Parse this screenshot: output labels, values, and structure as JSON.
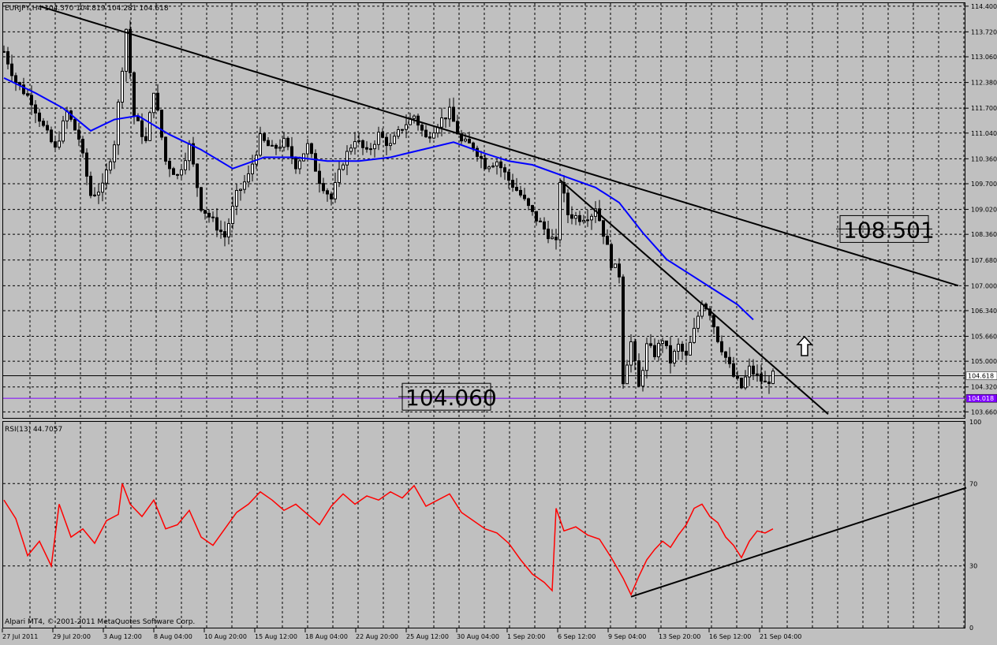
{
  "window": {
    "header_text": "EURJPY,H4  104.370 104.819 104.281 104.618",
    "copyright": "Alpari MT4, © 2001-2011 MetaQuotes Software Corp."
  },
  "colors": {
    "background": "#c0c0c0",
    "grid": "#000000",
    "candle": "#000000",
    "ma_line": "#0000ff",
    "rsi_line": "#ff0000",
    "level_line": "#8000ff",
    "trendline": "#000000"
  },
  "chart_data": [
    {
      "type": "candlestick",
      "symbol": "EURJPY",
      "timeframe": "H4",
      "ohlc_last": {
        "open": 104.37,
        "high": 104.819,
        "low": 104.281,
        "close": 104.618
      },
      "ylim": [
        103.5,
        114.48
      ],
      "y_ticks": [
        "114.400",
        "113.720",
        "113.060",
        "112.380",
        "111.700",
        "111.040",
        "110.360",
        "109.700",
        "109.020",
        "108.360",
        "107.680",
        "107.000",
        "106.340",
        "105.660",
        "105.000",
        "104.320",
        "103.660"
      ],
      "x_labels": [
        "27 Jul 2011",
        "29 Jul 20:00",
        "3 Aug 12:00",
        "8 Aug 04:00",
        "10 Aug 20:00",
        "15 Aug 12:00",
        "18 Aug 04:00",
        "22 Aug 20:00",
        "25 Aug 12:00",
        "30 Aug 04:00",
        "1 Sep 20:00",
        "6 Sep 12:00",
        "9 Sep 04:00",
        "13 Sep 20:00",
        "16 Sep 12:00",
        "21 Sep 04:00"
      ],
      "price_path": [
        [
          0,
          113.2
        ],
        [
          3,
          112.4
        ],
        [
          7,
          111.9
        ],
        [
          10,
          111.2
        ],
        [
          13,
          110.6
        ],
        [
          16,
          111.6
        ],
        [
          19,
          110.9
        ],
        [
          22,
          109.4
        ],
        [
          25,
          109.6
        ],
        [
          28,
          110.8
        ],
        [
          31,
          113.8
        ],
        [
          33,
          111.5
        ],
        [
          36,
          110.8
        ],
        [
          38,
          112.2
        ],
        [
          41,
          110.3
        ],
        [
          44,
          109.9
        ],
        [
          47,
          110.7
        ],
        [
          50,
          109.1
        ],
        [
          53,
          108.7
        ],
        [
          56,
          108.3
        ],
        [
          59,
          109.4
        ],
        [
          62,
          109.9
        ],
        [
          65,
          110.9
        ],
        [
          68,
          110.6
        ],
        [
          71,
          110.8
        ],
        [
          74,
          110.2
        ],
        [
          77,
          110.7
        ],
        [
          80,
          109.8
        ],
        [
          83,
          109.3
        ],
        [
          86,
          110.3
        ],
        [
          89,
          110.9
        ],
        [
          92,
          110.5
        ],
        [
          95,
          111.0
        ],
        [
          98,
          110.7
        ],
        [
          101,
          111.2
        ],
        [
          104,
          111.5
        ],
        [
          107,
          110.9
        ],
        [
          110,
          111.3
        ],
        [
          113,
          111.6
        ],
        [
          116,
          110.8
        ],
        [
          119,
          110.7
        ],
        [
          122,
          110.2
        ],
        [
          125,
          110.3
        ],
        [
          128,
          109.8
        ],
        [
          131,
          109.4
        ],
        [
          134,
          108.9
        ],
        [
          137,
          108.5
        ],
        [
          140,
          108.1
        ],
        [
          141,
          109.8
        ],
        [
          143,
          108.9
        ],
        [
          146,
          108.8
        ],
        [
          149,
          108.9
        ],
        [
          150,
          109.1
        ],
        [
          152,
          108.4
        ],
        [
          154,
          107.6
        ],
        [
          156,
          107.3
        ],
        [
          157,
          104.5
        ],
        [
          159,
          105.5
        ],
        [
          161,
          104.3
        ],
        [
          163,
          105.4
        ],
        [
          165,
          105.2
        ],
        [
          167,
          105.6
        ],
        [
          169,
          105.0
        ],
        [
          171,
          105.4
        ],
        [
          173,
          105.1
        ],
        [
          175,
          105.8
        ],
        [
          177,
          106.6
        ],
        [
          179,
          106.3
        ],
        [
          181,
          105.6
        ],
        [
          183,
          105.1
        ],
        [
          185,
          104.6
        ],
        [
          187,
          104.3
        ],
        [
          189,
          104.8
        ],
        [
          191,
          104.6
        ],
        [
          193,
          104.4
        ],
        [
          195,
          104.618
        ]
      ],
      "series": [
        {
          "kind": "moving-average",
          "values": [
            [
              0,
              112.5
            ],
            [
              8,
              112.1
            ],
            [
              15,
              111.7
            ],
            [
              22,
              111.1
            ],
            [
              28,
              111.4
            ],
            [
              34,
              111.5
            ],
            [
              42,
              111.0
            ],
            [
              50,
              110.6
            ],
            [
              58,
              110.1
            ],
            [
              66,
              110.4
            ],
            [
              74,
              110.4
            ],
            [
              82,
              110.3
            ],
            [
              90,
              110.3
            ],
            [
              98,
              110.4
            ],
            [
              106,
              110.6
            ],
            [
              114,
              110.8
            ],
            [
              122,
              110.5
            ],
            [
              128,
              110.3
            ],
            [
              134,
              110.2
            ],
            [
              142,
              109.9
            ],
            [
              150,
              109.6
            ],
            [
              156,
              109.2
            ],
            [
              162,
              108.4
            ],
            [
              168,
              107.7
            ],
            [
              174,
              107.3
            ],
            [
              180,
              106.9
            ],
            [
              186,
              106.5
            ],
            [
              190,
              106.1
            ]
          ]
        }
      ],
      "trendlines": [
        {
          "start": [
            9,
            114.4
          ],
          "end": [
            242,
            107.0
          ]
        },
        {
          "start": [
            141,
            109.8
          ],
          "end": [
            209,
            103.6
          ]
        }
      ],
      "horizontal_levels": [
        {
          "price": 104.618,
          "label": "104.618"
        },
        {
          "price": 104.018,
          "label": "104.018"
        }
      ],
      "annotations": [
        {
          "text": "108.501",
          "price": 108.501
        },
        {
          "text": "104.060",
          "price": 104.06
        }
      ],
      "arrow": {
        "shape": "up-arrow",
        "index": 203,
        "price": 105.4
      }
    },
    {
      "type": "line",
      "indicator": "RSI(13) 44.7057",
      "ylim": [
        0,
        100
      ],
      "y_ticks": [
        "100",
        "70",
        "30",
        "0"
      ],
      "values": [
        [
          0,
          62
        ],
        [
          3,
          53
        ],
        [
          6,
          35
        ],
        [
          9,
          42
        ],
        [
          12,
          30
        ],
        [
          14,
          60
        ],
        [
          17,
          44
        ],
        [
          20,
          48
        ],
        [
          23,
          41
        ],
        [
          26,
          52
        ],
        [
          29,
          55
        ],
        [
          30,
          70
        ],
        [
          32,
          60
        ],
        [
          35,
          54
        ],
        [
          38,
          62
        ],
        [
          41,
          48
        ],
        [
          44,
          50
        ],
        [
          47,
          57
        ],
        [
          50,
          44
        ],
        [
          53,
          40
        ],
        [
          56,
          48
        ],
        [
          59,
          56
        ],
        [
          62,
          60
        ],
        [
          65,
          66
        ],
        [
          68,
          62
        ],
        [
          71,
          57
        ],
        [
          74,
          60
        ],
        [
          77,
          55
        ],
        [
          80,
          50
        ],
        [
          83,
          59
        ],
        [
          86,
          65
        ],
        [
          89,
          60
        ],
        [
          92,
          64
        ],
        [
          95,
          62
        ],
        [
          98,
          66
        ],
        [
          101,
          63
        ],
        [
          104,
          69
        ],
        [
          107,
          59
        ],
        [
          110,
          62
        ],
        [
          113,
          65
        ],
        [
          116,
          56
        ],
        [
          119,
          52
        ],
        [
          122,
          48
        ],
        [
          125,
          46
        ],
        [
          128,
          41
        ],
        [
          131,
          33
        ],
        [
          134,
          26
        ],
        [
          137,
          22
        ],
        [
          139,
          18
        ],
        [
          140,
          58
        ],
        [
          142,
          47
        ],
        [
          145,
          49
        ],
        [
          148,
          45
        ],
        [
          151,
          43
        ],
        [
          154,
          34
        ],
        [
          157,
          24
        ],
        [
          159,
          16
        ],
        [
          161,
          25
        ],
        [
          163,
          33
        ],
        [
          165,
          38
        ],
        [
          167,
          42
        ],
        [
          169,
          39
        ],
        [
          171,
          45
        ],
        [
          173,
          50
        ],
        [
          175,
          58
        ],
        [
          177,
          60
        ],
        [
          179,
          54
        ],
        [
          181,
          51
        ],
        [
          183,
          44
        ],
        [
          185,
          40
        ],
        [
          187,
          34
        ],
        [
          189,
          42
        ],
        [
          191,
          47
        ],
        [
          193,
          46
        ],
        [
          195,
          48
        ]
      ],
      "trendlines": [
        {
          "start": [
            159,
            15
          ],
          "end": [
            244,
            68
          ]
        }
      ]
    }
  ]
}
